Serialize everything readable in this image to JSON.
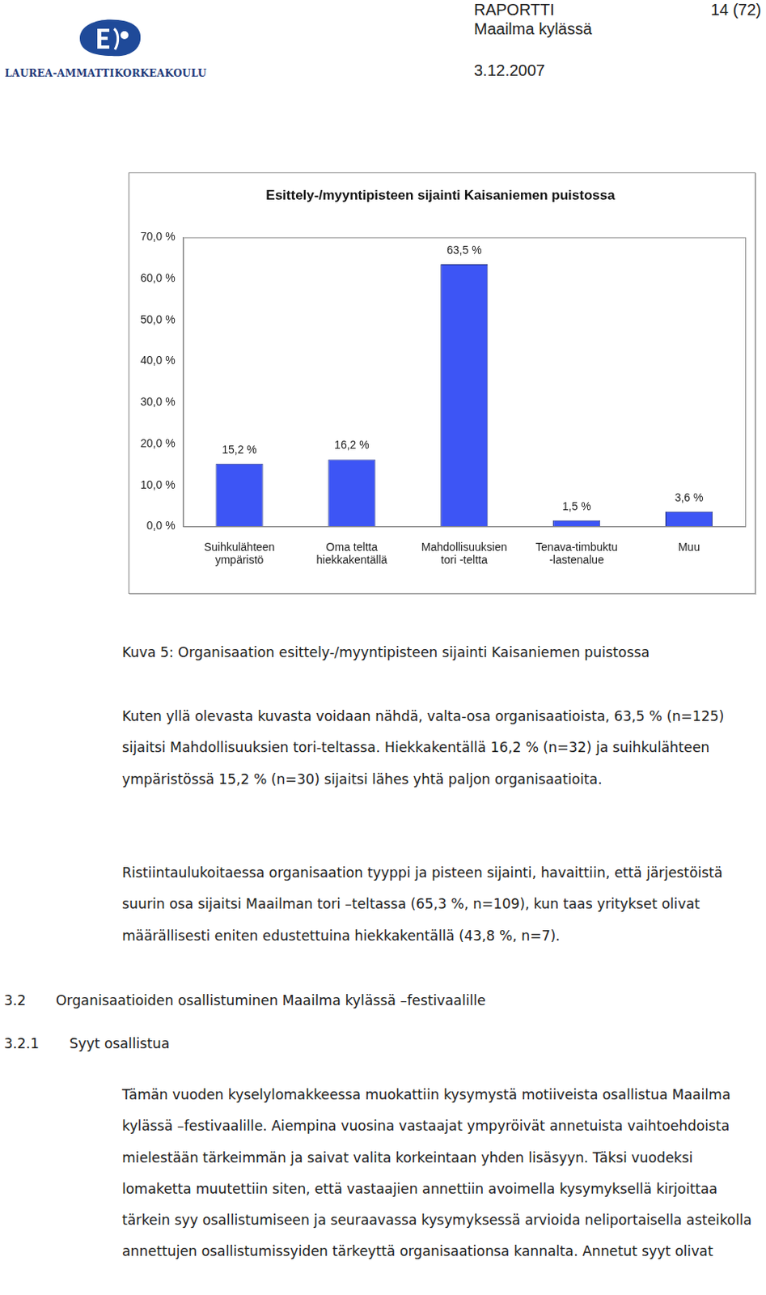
{
  "header": {
    "logo_text": "LAUREA-AMMATTIKORKEAKOULU",
    "report": "RAPORTTI",
    "page": "14 (72)",
    "project": "Maailma kylässä",
    "date": "3.12.2007"
  },
  "chart_data": {
    "type": "bar",
    "title": "Esittely-/myyntipisteen sijainti Kaisaniemen puistossa",
    "categories": [
      [
        "Suihkulähteen",
        "ympäristö"
      ],
      [
        "Oma teltta",
        "hiekkakentällä"
      ],
      [
        "Mahdollisuuksien",
        "tori -teltta"
      ],
      [
        "Tenava-timbuktu",
        "-lastenalue"
      ],
      [
        "Muu"
      ]
    ],
    "values": [
      15.2,
      16.2,
      63.5,
      1.5,
      3.6
    ],
    "value_labels": [
      "15,2 %",
      "16,2 %",
      "63,5 %",
      "1,5 %",
      "3,6 %"
    ],
    "color": "#3d55f5",
    "ylim": [
      0,
      70
    ],
    "yticks": [
      {
        "value": 0,
        "label": "0,0 %"
      },
      {
        "value": 10,
        "label": "10,0 %"
      },
      {
        "value": 20,
        "label": "20,0 %"
      },
      {
        "value": 30,
        "label": "30,0 %"
      },
      {
        "value": 40,
        "label": "40,0 %"
      },
      {
        "value": 50,
        "label": "50,0 %"
      },
      {
        "value": 60,
        "label": "60,0 %"
      },
      {
        "value": 70,
        "label": "70,0 %"
      }
    ],
    "grid": false,
    "data_labels": true
  },
  "caption": "Kuva 5: Organisaation esittely-/myyntipisteen sijainti Kaisaniemen puistossa",
  "paragraphs": [
    "Kuten yllä olevasta kuvasta voidaan nähdä, valta-osa organisaatioista, 63,5 % (n=125) sijaitsi Mahdollisuuksien tori-teltassa. Hiekkakentällä 16,2 % (n=32) ja suihkulähteen ympäristössä 15,2 % (n=30) sijaitsi lähes yhtä paljon organisaatioita.",
    "Ristiintaulukoitaessa organisaation tyyppi ja pisteen sijainti, havaittiin, että järjestöistä suurin osa sijaitsi Maailman tori –teltassa (65,3 %, n=109), kun taas yritykset olivat määrällisesti eniten edustettuina hiekkakentällä (43,8 %, n=7)."
  ],
  "sections": [
    {
      "number": "3.2",
      "title": "Organisaatioiden osallistuminen Maailma kylässä –festivaalille"
    },
    {
      "number": "3.2.1",
      "title": "Syyt osallistua"
    }
  ],
  "section_paragraphs": [
    "Tämän vuoden kyselylomakkeessa muokattiin kysymystä motiiveista osallistua Maailma kylässä –festivaalille. Aiempina vuosina vastaajat ympyröivät annetuista vaihtoehdoista mielestään tärkeimmän ja saivat valita korkeintaan yhden lisäsyyn. Täksi vuodeksi lomaketta muutettiin siten, että vastaajien annettiin avoimella kysymyksellä kirjoittaa tärkein syy osallistumiseen ja seuraavassa kysymyksessä arvioida neliportaisella asteikolla annettujen osallistumissyiden tärkeyttä organisaationsa kannalta. Annetut syyt olivat"
  ]
}
